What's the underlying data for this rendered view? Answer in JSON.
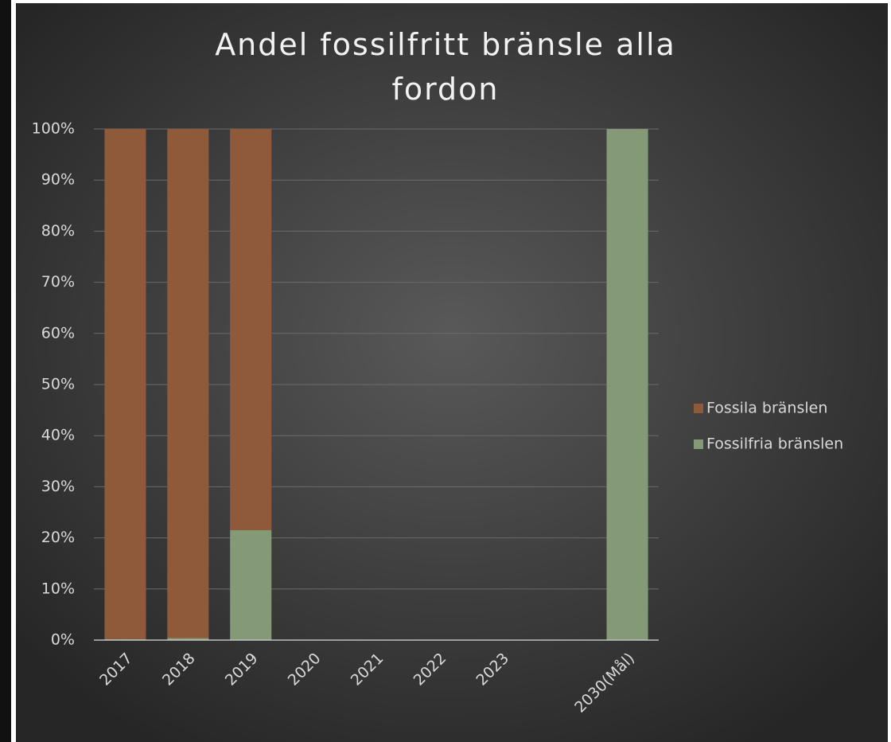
{
  "chart_data": {
    "type": "stacked_bar",
    "title": "Andel fossilfritt bränsle alla fordon",
    "categories": [
      "2017",
      "2018",
      "2019",
      "2020",
      "2021",
      "2022",
      "2023",
      null,
      "2030(Mål)"
    ],
    "series": [
      {
        "name": "Fossilfria bränslen",
        "color": "#849a76",
        "values": [
          0.2,
          0.4,
          21.5,
          null,
          null,
          null,
          null,
          null,
          100
        ]
      },
      {
        "name": "Fossila bränslen",
        "color": "#8e5a3a",
        "values": [
          99.8,
          99.6,
          78.5,
          null,
          null,
          null,
          null,
          null,
          0
        ]
      }
    ],
    "ylim": [
      0,
      100
    ],
    "yticks": [
      {
        "value": 0,
        "label": "0%"
      },
      {
        "value": 10,
        "label": "10%"
      },
      {
        "value": 20,
        "label": "20%"
      },
      {
        "value": 30,
        "label": "30%"
      },
      {
        "value": 40,
        "label": "40%"
      },
      {
        "value": 50,
        "label": "50%"
      },
      {
        "value": 60,
        "label": "60%"
      },
      {
        "value": 70,
        "label": "70%"
      },
      {
        "value": 80,
        "label": "80%"
      },
      {
        "value": 90,
        "label": "90%"
      },
      {
        "value": 100,
        "label": "100%"
      }
    ],
    "grid": true,
    "legend": "right"
  }
}
